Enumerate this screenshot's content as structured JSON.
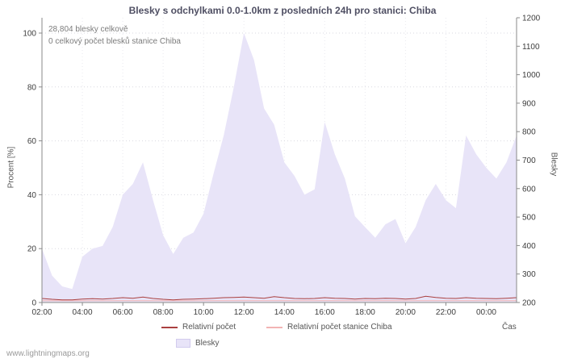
{
  "footer": {
    "url": "www.lightningmaps.org"
  },
  "chart_data": {
    "type": "area+line",
    "title": "Blesky s odchylkami 0.0-1.0km z posledních 24h pro stanici: Chiba",
    "xlabel": "Čas",
    "ylabel_left": "Procent  [%]",
    "ylabel_right": "Blesky",
    "annotations": {
      "total": "28,804 blesky celkově",
      "station": "0 celkový počet blesků stanice Chiba"
    },
    "x_hours": [
      2,
      2.5,
      3,
      3.5,
      4,
      4.5,
      5,
      5.5,
      6,
      6.5,
      7,
      7.5,
      8,
      8.5,
      9,
      9.5,
      10,
      10.5,
      11,
      11.5,
      12,
      12.5,
      13,
      13.5,
      14,
      14.5,
      15,
      15.5,
      16,
      16.5,
      17,
      17.5,
      18,
      18.5,
      19,
      19.5,
      20,
      20.5,
      21,
      21.5,
      22,
      22.5,
      23,
      23.5,
      24,
      24.5,
      25,
      25.5
    ],
    "x_ticks": {
      "hours": [
        2,
        4,
        6,
        8,
        10,
        12,
        14,
        16,
        18,
        20,
        22,
        24
      ],
      "labels": [
        "02:00",
        "04:00",
        "06:00",
        "08:00",
        "10:00",
        "12:00",
        "14:00",
        "16:00",
        "18:00",
        "20:00",
        "22:00",
        "00:00"
      ]
    },
    "y_left": {
      "min": 0,
      "max": 100,
      "ticks": [
        0,
        20,
        40,
        60,
        80,
        100
      ]
    },
    "y_right": {
      "min": 200,
      "max": 1200,
      "ticks": [
        200,
        300,
        400,
        500,
        600,
        700,
        800,
        900,
        1000,
        1100,
        1200
      ]
    },
    "series": [
      {
        "name": "Relativní počet",
        "type": "line",
        "color": "#aa4040",
        "values": [
          1.5,
          1.2,
          1.0,
          1.0,
          1.3,
          1.4,
          1.3,
          1.5,
          1.8,
          1.6,
          2.0,
          1.5,
          1.2,
          1.0,
          1.2,
          1.3,
          1.4,
          1.6,
          1.8,
          1.9,
          2.0,
          1.8,
          1.6,
          2.2,
          1.8,
          1.5,
          1.4,
          1.5,
          1.8,
          1.6,
          1.5,
          1.3,
          1.5,
          1.4,
          1.6,
          1.5,
          1.3,
          1.5,
          2.3,
          1.9,
          1.6,
          1.5,
          1.8,
          1.6,
          1.5,
          1.4,
          1.6,
          1.8
        ]
      },
      {
        "name": "Relativní počet stanice Chiba",
        "type": "line",
        "color": "#f2b4b4",
        "values": [
          0.7,
          0.7,
          0.7,
          0.7,
          0.7,
          0.7,
          0.7,
          0.7,
          0.7,
          0.7,
          0.7,
          0.7,
          0.7,
          0.7,
          0.7,
          0.7,
          0.7,
          0.7,
          0.7,
          0.7,
          0.7,
          0.7,
          0.7,
          0.7,
          0.7,
          0.7,
          0.7,
          0.7,
          0.7,
          0.7,
          0.7,
          0.7,
          0.7,
          0.7,
          0.7,
          0.7,
          0.7,
          0.7,
          0.7,
          0.7,
          0.7,
          0.7,
          0.7,
          0.7,
          0.7,
          0.7,
          0.7,
          0.7
        ]
      },
      {
        "name": "Blesky",
        "type": "area",
        "color": "#e8e4f8",
        "values_percent": [
          20,
          10,
          6,
          5,
          17,
          20,
          21,
          28,
          40,
          44,
          52,
          38,
          25,
          18,
          24,
          26,
          33,
          48,
          62,
          80,
          100,
          90,
          72,
          66,
          52,
          47,
          40,
          42,
          67,
          55,
          46,
          32,
          28,
          24,
          29,
          31,
          22,
          28,
          38,
          44,
          38,
          35,
          62,
          55,
          50,
          46,
          52,
          62
        ]
      }
    ]
  }
}
